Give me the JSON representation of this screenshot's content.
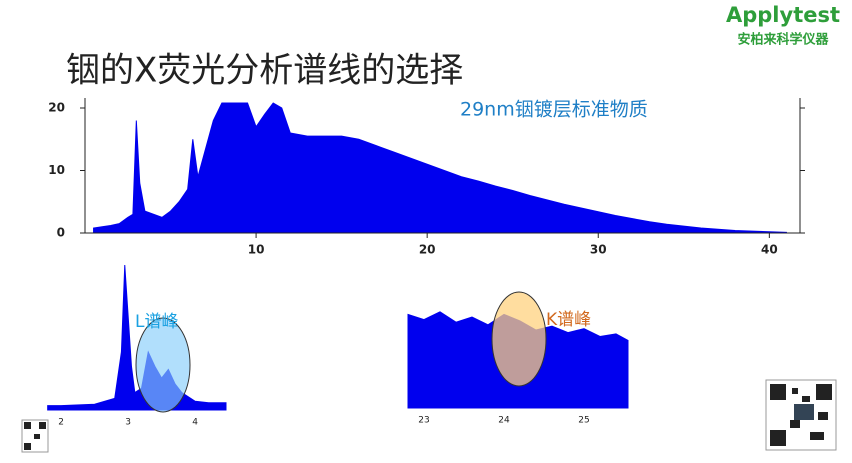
{
  "slide": {
    "title": "铟的X荧光分析谱线的选择",
    "logo": "Applytest",
    "logo_sub": "安柏来科学仪器"
  },
  "chart_data": [
    {
      "type": "area",
      "annotation": "29nm铟镀层标准物质",
      "color": "#0000ee",
      "x": [
        0.5,
        1,
        1.5,
        2,
        2.5,
        2.8,
        3,
        3.2,
        3.5,
        4,
        4.5,
        5,
        5.5,
        6,
        6.3,
        6.6,
        7,
        7.5,
        8,
        8.5,
        9,
        9.5,
        10,
        10.5,
        11,
        11.5,
        12,
        13,
        14,
        15,
        16,
        17,
        18,
        19,
        20,
        21,
        22,
        23,
        24,
        25,
        26,
        27,
        28,
        29,
        30,
        31,
        32,
        33,
        34,
        35,
        36,
        37,
        38,
        39,
        40,
        41
      ],
      "values": [
        0.8,
        1.0,
        1.2,
        1.5,
        2.5,
        3,
        18,
        8,
        3.5,
        3,
        2.5,
        3.5,
        5,
        7,
        15,
        9,
        13,
        18,
        20.8,
        20.8,
        20.8,
        20.8,
        17,
        19,
        20.8,
        20,
        16,
        15.5,
        15.5,
        15.5,
        15,
        14,
        13,
        12,
        11,
        10,
        9,
        8.3,
        7.5,
        6.8,
        6,
        5.3,
        4.6,
        4,
        3.4,
        2.8,
        2.3,
        1.8,
        1.4,
        1.1,
        0.8,
        0.6,
        0.4,
        0.3,
        0.2,
        0.1
      ],
      "xlim": [
        0,
        41.5
      ],
      "ylim": [
        0,
        20.8
      ],
      "xticks": [
        10,
        20,
        30,
        40
      ],
      "yticks": [
        0,
        10,
        20
      ]
    },
    {
      "type": "area",
      "annotation": "L谱峰",
      "color": "#0000ee",
      "x": [
        1.8,
        2,
        2.5,
        2.8,
        2.9,
        2.95,
        3.05,
        3.1,
        3.2,
        3.3,
        3.4,
        3.5,
        3.6,
        3.7,
        3.8,
        4.0,
        4.2,
        4.46
      ],
      "values": [
        3,
        3,
        4,
        8,
        40,
        100,
        30,
        12,
        15,
        40,
        30,
        22,
        28,
        18,
        12,
        6,
        5,
        5
      ],
      "xlim": [
        1.79,
        4.46
      ],
      "ylim": [
        0,
        100
      ],
      "xticks": [
        2,
        3,
        4
      ]
    },
    {
      "type": "area",
      "annotation": "K谱峰",
      "color": "#0000ee",
      "x": [
        22.8,
        23,
        23.2,
        23.4,
        23.6,
        23.8,
        24,
        24.2,
        24.4,
        24.6,
        24.8,
        25,
        25.2,
        25.4,
        25.55
      ],
      "values": [
        72,
        68,
        74,
        66,
        70,
        64,
        72,
        67,
        60,
        63,
        58,
        61,
        55,
        57,
        52
      ],
      "xlim": [
        22.8,
        25.55
      ],
      "ylim": [
        0,
        100
      ],
      "xticks": [
        23,
        24,
        25
      ]
    }
  ]
}
